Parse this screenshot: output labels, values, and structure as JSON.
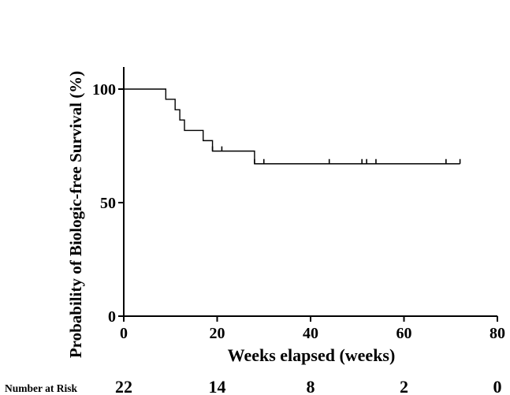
{
  "chart_data": {
    "type": "line",
    "subtype": "kaplan-meier",
    "title": "",
    "xlabel": "Weeks elapsed (weeks)",
    "ylabel": "Probability of Biologic-free Survival (%)",
    "xlim": [
      0,
      80
    ],
    "ylim": [
      0,
      100
    ],
    "x_ticks": [
      0,
      20,
      40,
      60,
      80
    ],
    "y_ticks": [
      0,
      50,
      100
    ],
    "grid": false,
    "legend": "none",
    "series": [
      {
        "steps": [
          {
            "x": 0,
            "y": 100
          },
          {
            "x": 9,
            "y": 95.5
          },
          {
            "x": 11,
            "y": 90.9
          },
          {
            "x": 12,
            "y": 86.4
          },
          {
            "x": 13,
            "y": 81.8
          },
          {
            "x": 17,
            "y": 77.3
          },
          {
            "x": 19,
            "y": 72.7
          },
          {
            "x": 28,
            "y": 67.1
          }
        ],
        "end_x": 72,
        "censored": [
          {
            "x": 19,
            "y": 72.7
          },
          {
            "x": 21,
            "y": 72.7
          },
          {
            "x": 28,
            "y": 67.1
          },
          {
            "x": 30,
            "y": 67.1
          },
          {
            "x": 44,
            "y": 67.1
          },
          {
            "x": 51,
            "y": 67.1
          },
          {
            "x": 52,
            "y": 67.1
          },
          {
            "x": 54,
            "y": 67.1
          },
          {
            "x": 69,
            "y": 67.1
          },
          {
            "x": 72,
            "y": 67.1
          }
        ]
      }
    ],
    "risk_table": {
      "label": "Number at Risk",
      "times": [
        0,
        20,
        40,
        60,
        80
      ],
      "values": [
        "22",
        "14",
        "8",
        "2",
        "0"
      ]
    }
  }
}
